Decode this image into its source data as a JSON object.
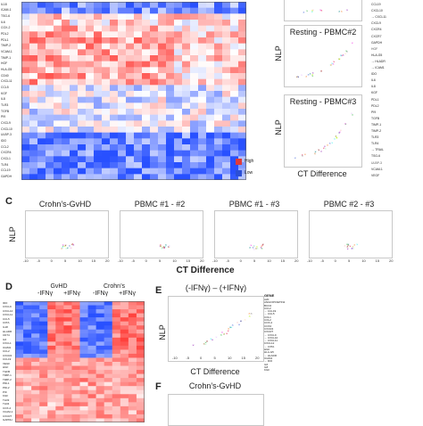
{
  "panelA": {
    "labels": [
      "IL18",
      "ICAM-1",
      "TSG-6",
      "IL6",
      "COX-2",
      "PDL2",
      "PDL1",
      "TIMP-2",
      "VCAM-1",
      "TIMP-1",
      "HGF",
      "HLA-G5",
      "CD40",
      "CXCL11",
      "CCL5",
      "KGF",
      "IL8",
      "TLR3",
      "TGFB",
      "PI9",
      "CXCL9",
      "CXCL10",
      "ULBP-3",
      "IDO",
      "CCL2",
      "CXCR4",
      "CXCL1",
      "TLR4",
      "CCL19",
      "GAPDH"
    ],
    "legend": {
      "high": "High",
      "low": "Low",
      "high_color": "#e03a3a",
      "low_color": "#2b4fd6"
    }
  },
  "panelB": {
    "plots": [
      {
        "title": "Resting - PBMC#2",
        "ylabel": "NLP"
      },
      {
        "title": "Resting - PBMC#3",
        "ylabel": "NLP"
      }
    ],
    "xlabel": "CT Difference",
    "genes": [
      "CCL19",
      "CXCL10",
      "CXCL11",
      "CXCL9",
      "CXCR4",
      "CXCR7",
      "GAPDH",
      "HGF",
      "HLA-G5",
      "HLADR",
      "ICAM1",
      "IDO",
      "IL6",
      "IL8",
      "KGF",
      "PDL1",
      "PDL2",
      "PI9",
      "TGFB",
      "TIMP-1",
      "TIMP-2",
      "TLR3",
      "TLR4",
      "TRAIL",
      "TSG-6",
      "ULBP-3",
      "VCAM-1",
      "VEGF"
    ],
    "arrowed": [
      "CXCL11",
      "HLADR",
      "ICAM1",
      "TRAIL"
    ]
  },
  "panelC": {
    "letter": "C",
    "plots": [
      {
        "title": "Crohn’s-GvHD"
      },
      {
        "title": "PBMC #1 - #2"
      },
      {
        "title": "PBMC #1 - #3"
      },
      {
        "title": "PBMC #2 - #3"
      }
    ],
    "ylabel": "NLP",
    "xlabel": "CT Difference",
    "xticks": [
      "-10",
      "-5",
      "0",
      "5",
      "10",
      "15",
      "20"
    ]
  },
  "panelD": {
    "letter": "D",
    "group1": "GvHD",
    "group2": "Crohn’s",
    "sub_minus": "-IFNγ",
    "sub_plus": "+IFNγ",
    "labels": [
      "IDO",
      "CXCL9",
      "CXCL10",
      "CXCL11",
      "CCL5",
      "CIITA",
      "IL18",
      "HLADR",
      "CD74",
      "IL6",
      "CXCL1",
      "ICAM1",
      "CCL2",
      "CXCR4",
      "CCL19",
      "VEGF",
      "HGF",
      "TGFB",
      "TIMP-1",
      "TIMP-2",
      "PDL1",
      "PDL2",
      "PI9",
      "KGF",
      "TLR3",
      "TLR4",
      "COX-2",
      "VCAM-1",
      "CXCR7",
      "GAPDH"
    ]
  },
  "panelE": {
    "letter": "E",
    "title": "(-IFNγ) – (+IFNγ)",
    "ylabel": "NLP",
    "xlabel": "CT Difference",
    "xticks": [
      "-10",
      "-5",
      "0",
      "5",
      "10",
      "15",
      "20"
    ],
    "legend_title": "GENE",
    "genes": [
      "A20",
      "ANGIOPOIETIN2",
      "BCO2",
      "CCL2",
      "CCL19",
      "CCL5",
      "COL1",
      "COL2",
      "COX-2",
      "COX2",
      "CXCR4",
      "CXCR7",
      "CXCL9",
      "CXCL10",
      "CXCL11",
      "CXCL12",
      "CIITA",
      "HGF",
      "HLA-G5",
      "HLADR",
      "ICAM1",
      "IDO",
      "IL6",
      "IL8",
      "KGF"
    ],
    "arrowed": [
      "CCL19",
      "CCL5",
      "CIITA",
      "CXCL9",
      "CXCL10",
      "CXCL11",
      "HLADR",
      "IDO"
    ]
  },
  "panelF": {
    "letter": "F",
    "title": "Crohn’s-GvHD"
  }
}
